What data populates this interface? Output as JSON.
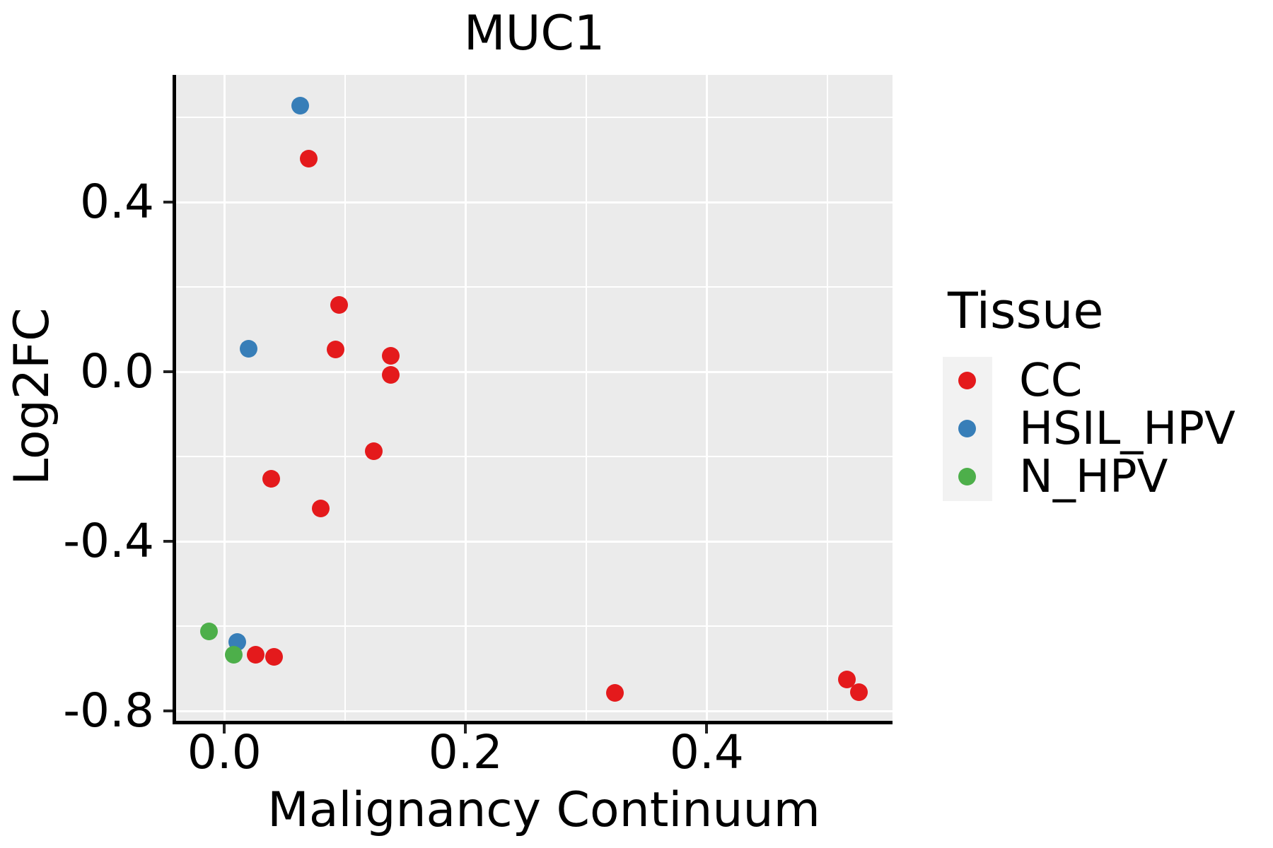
{
  "figure": {
    "title": "MUC1"
  },
  "chart_data": {
    "type": "scatter",
    "title": "MUC1",
    "xlabel": "Malignancy Continuum",
    "ylabel": "Log2FC",
    "legend_title": "Tissue",
    "legend_position": "right",
    "grid": true,
    "xlim": [
      -0.04,
      0.554
    ],
    "ylim": [
      -0.823,
      0.7
    ],
    "x_ticks": [
      0.0,
      0.2,
      0.4
    ],
    "y_ticks": [
      0.4,
      0.0,
      -0.4,
      -0.8
    ],
    "x_minor_ticks": [
      0.1,
      0.3,
      0.5
    ],
    "y_minor_ticks": [
      0.6,
      0.2,
      -0.2,
      -0.6
    ],
    "series": [
      {
        "name": "CC",
        "color": "#E41A1C",
        "points": [
          [
            0.07,
            0.503
          ],
          [
            0.095,
            0.158
          ],
          [
            0.092,
            0.053
          ],
          [
            0.138,
            0.038
          ],
          [
            0.138,
            -0.008
          ],
          [
            0.124,
            -0.187
          ],
          [
            0.039,
            -0.253
          ],
          [
            0.08,
            -0.322
          ],
          [
            0.026,
            -0.668
          ],
          [
            0.041,
            -0.672
          ],
          [
            0.324,
            -0.757
          ],
          [
            0.516,
            -0.725
          ],
          [
            0.526,
            -0.755
          ]
        ]
      },
      {
        "name": "HSIL_HPV",
        "color": "#377EB8",
        "points": [
          [
            0.063,
            0.628
          ],
          [
            0.02,
            0.055
          ],
          [
            0.011,
            -0.638
          ]
        ]
      },
      {
        "name": "N_HPV",
        "color": "#4DAF4A",
        "points": [
          [
            -0.013,
            -0.612
          ],
          [
            0.008,
            -0.667
          ]
        ]
      }
    ]
  },
  "colors": {
    "page_background": "#FFFFFF",
    "panel_background": "#EBEBEB",
    "grid_line": "#FFFFFF",
    "axis_line": "#000000",
    "tick_mark": "#222222",
    "text": "#000000",
    "legend_key_background": "#F2F2F2",
    "cc": "#E41A1C",
    "hsil_hpv": "#377EB8",
    "n_hpv": "#4DAF4A"
  }
}
